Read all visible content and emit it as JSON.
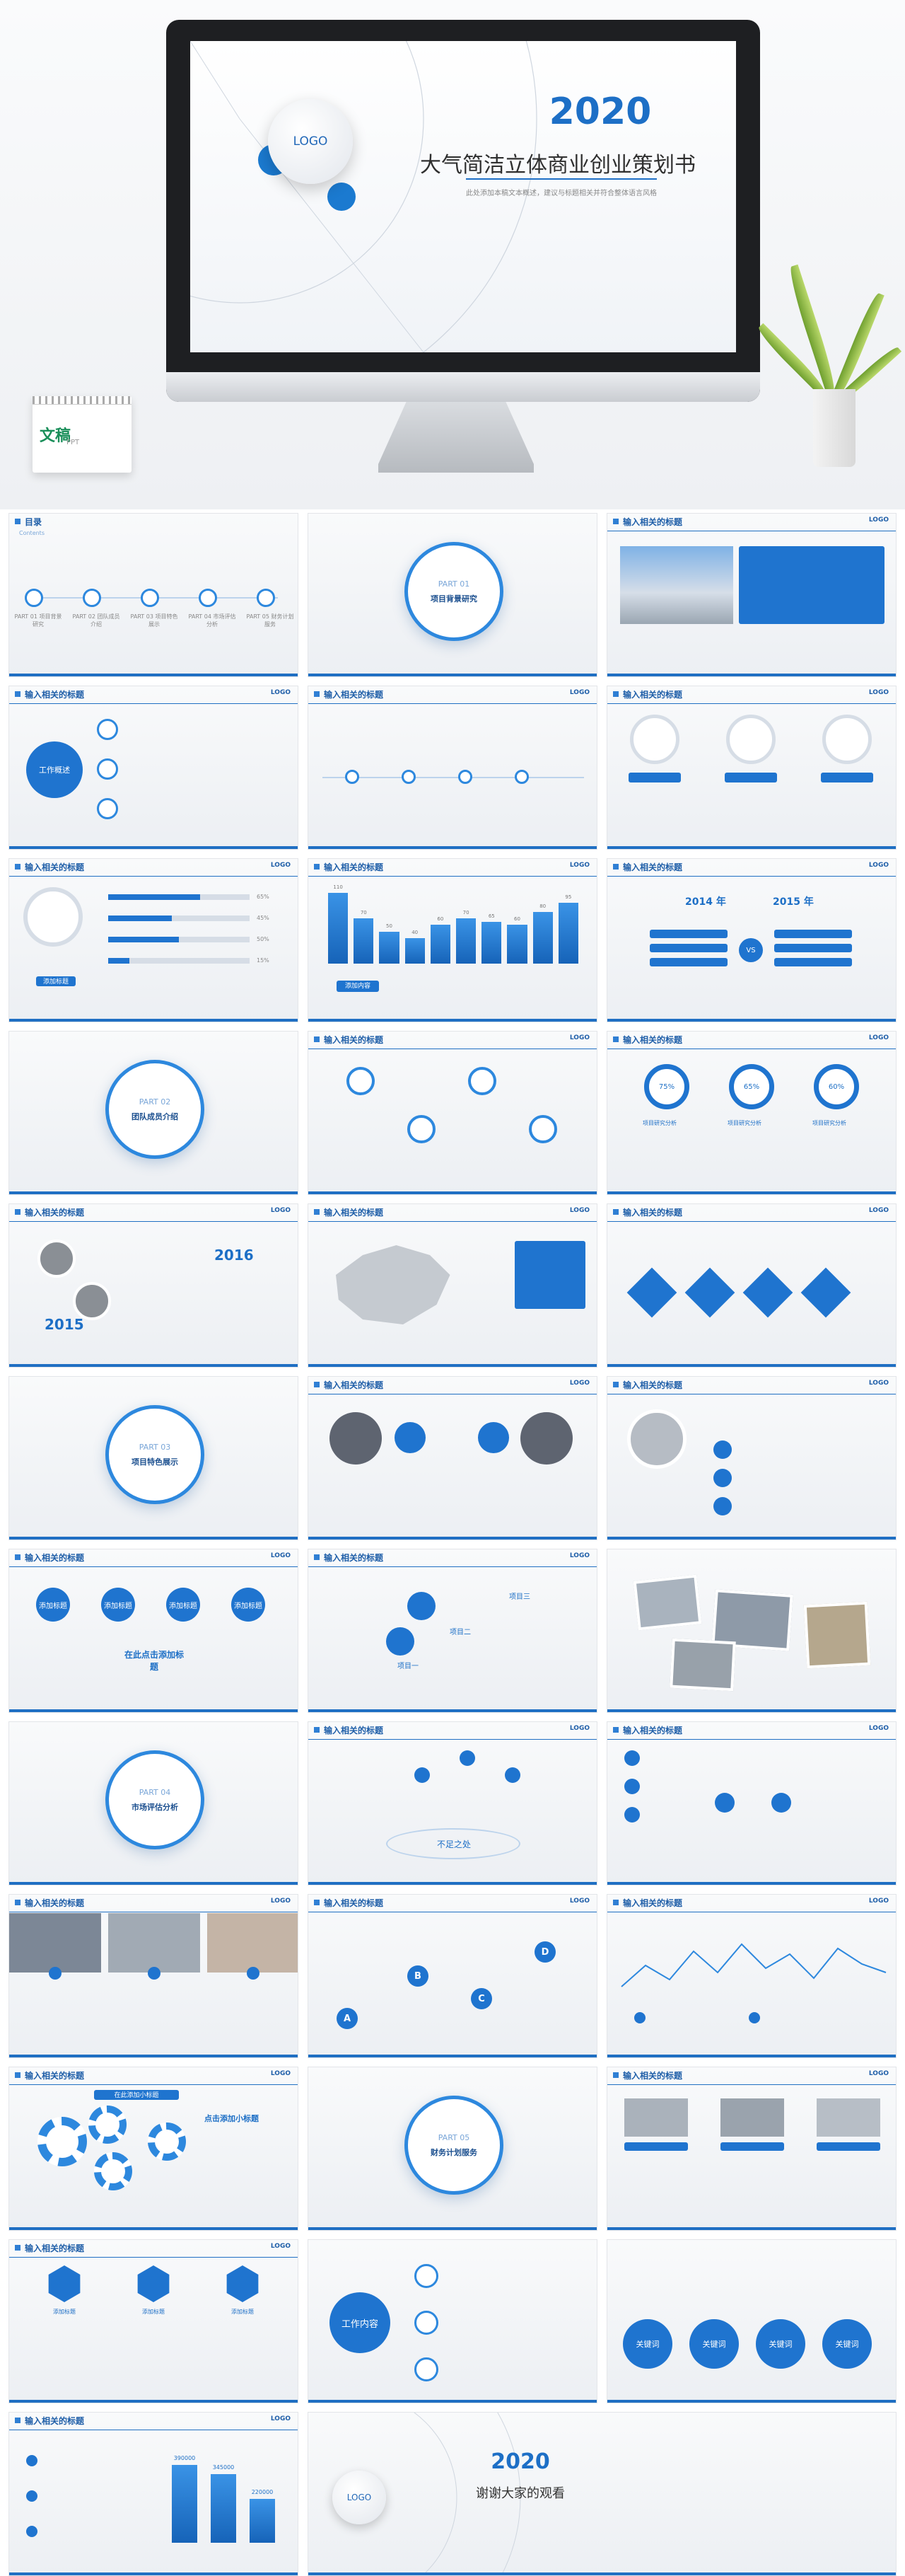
{
  "hero": {
    "logo": "LOGO",
    "year": "2020",
    "title": "大气简洁立体商业创业策划书",
    "subtitle": "此处添加本稿文本概述，建议与标题相关并符合整体语言风格",
    "calendar_brand": "文稿",
    "calendar_tag": "PPT"
  },
  "common": {
    "slide_title": "输入相关的标题",
    "logo": "LOGO"
  },
  "s_toc": {
    "title": "目录",
    "en": "Contents",
    "items": [
      "PART 01 项目背景研究",
      "PART 02 团队成员介绍",
      "PART 03 项目特色展示",
      "PART 04 市场评估分析",
      "PART 05 财务计划服务"
    ]
  },
  "part1": {
    "part": "PART 01",
    "label": "项目背景研究"
  },
  "part2": {
    "part": "PART 02",
    "label": "团队成员介绍"
  },
  "part3": {
    "part": "PART 03",
    "label": "项目特色展示"
  },
  "part4": {
    "part": "PART 04",
    "label": "市场评估分析"
  },
  "part5": {
    "part": "PART 05",
    "label": "财务计划服务"
  },
  "s_work": {
    "center": "工作概述"
  },
  "s_bars": {
    "pcts": [
      "65%",
      "45%",
      "50%",
      "15%"
    ],
    "button": "添加标题"
  },
  "s_columns": {
    "values": [
      "110",
      "70",
      "50",
      "40",
      "60",
      "70",
      "65",
      "60",
      "80",
      "95"
    ],
    "button": "添加内容"
  },
  "s_years": {
    "left": "2014 年",
    "right": "2015 年",
    "vs": "VS"
  },
  "s_rings": {
    "pcts": [
      "75%",
      "65%",
      "60%"
    ],
    "labels": [
      "项目研究分析",
      "项目研究分析",
      "项目研究分析"
    ]
  },
  "s_timeline": {
    "y1": "2016",
    "y2": "2015"
  },
  "s_add": {
    "labels": [
      "添加标题",
      "添加标题",
      "添加标题",
      "添加标题"
    ],
    "click": "在此点击添加标题"
  },
  "s_sections": {
    "labels": [
      "项目三",
      "项目二",
      "项目一"
    ]
  },
  "s_oval": {
    "center": "不足之处"
  },
  "s_abcd": {
    "letters": [
      "A",
      "B",
      "C",
      "D"
    ]
  },
  "s_gear": {
    "title": "点击添加小标题",
    "tag": "在此添加小标题"
  },
  "s_work2": {
    "center": "工作内容"
  },
  "s_hexes": {
    "hex": [
      "添加标题",
      "添加标题",
      "添加标题"
    ]
  },
  "s_keywords": {
    "keys": [
      "关键词",
      "关键词",
      "关键词",
      "关键词"
    ]
  },
  "s_bar3": {
    "values": [
      "390000",
      "345000",
      "220000"
    ]
  },
  "end": {
    "year": "2020",
    "text": "谢谢大家的观看",
    "logo": "LOGO"
  }
}
